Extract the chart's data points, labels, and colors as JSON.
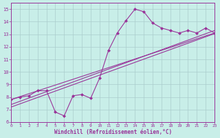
{
  "bg_color": "#c8eee8",
  "grid_color": "#aacccc",
  "line_color": "#993399",
  "xlabel": "Windchill (Refroidissement éolien,°C)",
  "xlim": [
    0,
    23
  ],
  "ylim": [
    6,
    15.5
  ],
  "yticks": [
    6,
    7,
    8,
    9,
    10,
    11,
    12,
    13,
    14,
    15
  ],
  "xticks": [
    0,
    1,
    2,
    3,
    4,
    5,
    6,
    7,
    8,
    9,
    10,
    11,
    12,
    13,
    14,
    15,
    16,
    17,
    18,
    19,
    20,
    21,
    22,
    23
  ],
  "curve1_x": [
    0,
    1,
    2,
    3,
    4,
    5,
    6,
    7,
    8,
    9,
    10,
    11,
    12,
    13,
    14,
    15,
    16,
    17,
    18,
    19,
    20,
    21,
    22,
    23
  ],
  "curve1_y": [
    7.8,
    8.0,
    8.1,
    8.5,
    8.5,
    6.8,
    6.5,
    8.1,
    8.2,
    7.9,
    9.5,
    11.7,
    13.1,
    14.1,
    15.0,
    14.8,
    13.9,
    13.5,
    13.3,
    13.1,
    13.3,
    13.1,
    13.5,
    13.1
  ],
  "line1_x": [
    0,
    23
  ],
  "line1_y": [
    7.8,
    13.1
  ],
  "line2_x": [
    0,
    23
  ],
  "line2_y": [
    7.4,
    13.3
  ],
  "line3_x": [
    0,
    23
  ],
  "line3_y": [
    7.2,
    13.05
  ]
}
